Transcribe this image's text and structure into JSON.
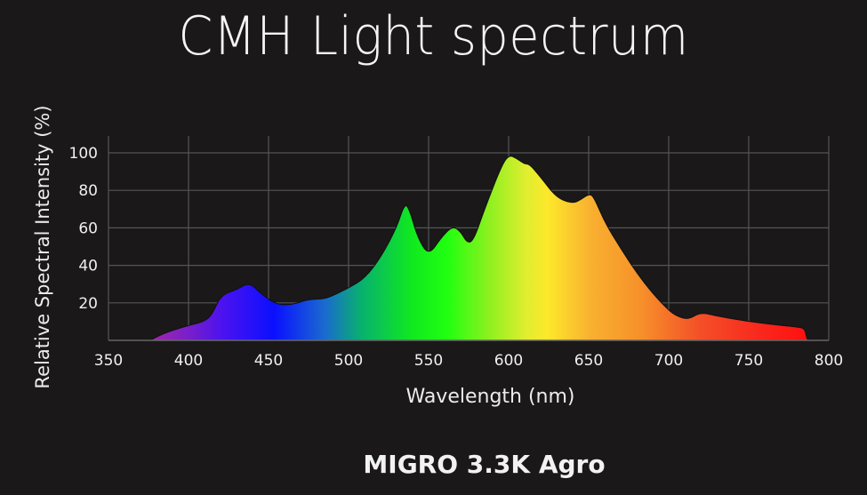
{
  "chart_data": {
    "type": "area",
    "title": "CMH Light spectrum",
    "subtitle": "MIGRO 3.3K Agro",
    "xlabel": "Wavelength (nm)",
    "ylabel": "Relative Spectral Intensity (%)",
    "xlim": [
      350,
      800
    ],
    "ylim": [
      0,
      100
    ],
    "x_ticks": [
      350,
      400,
      450,
      500,
      550,
      600,
      650,
      700,
      750,
      800
    ],
    "y_ticks": [
      20,
      40,
      60,
      80,
      100
    ],
    "grid": true,
    "legend": null,
    "fill": "visible-spectrum gradient (violet to red)",
    "x": [
      376,
      385,
      400,
      410,
      415,
      420,
      430,
      438,
      445,
      455,
      465,
      475,
      485,
      493,
      500,
      510,
      520,
      530,
      535,
      538,
      543,
      550,
      558,
      565,
      570,
      574,
      578,
      585,
      595,
      600,
      605,
      610,
      613,
      620,
      630,
      640,
      645,
      650,
      653,
      660,
      670,
      680,
      690,
      700,
      705,
      712,
      720,
      730,
      750,
      770,
      782,
      785,
      786,
      787
    ],
    "values": [
      0,
      4,
      8,
      10,
      14,
      24,
      27,
      31,
      25,
      19,
      19,
      22,
      22,
      25,
      28,
      33,
      44,
      60,
      73,
      70,
      55,
      45,
      55,
      61,
      58,
      52,
      53,
      70,
      92,
      99,
      97,
      94,
      94,
      87,
      76,
      73,
      75,
      78,
      77,
      63,
      49,
      36,
      25,
      16,
      13,
      11,
      15,
      13,
      10,
      8,
      7,
      6,
      2,
      0
    ]
  },
  "colors": {
    "background": "#1a1818",
    "grid": "#555555",
    "text": "#f2f2f2"
  }
}
